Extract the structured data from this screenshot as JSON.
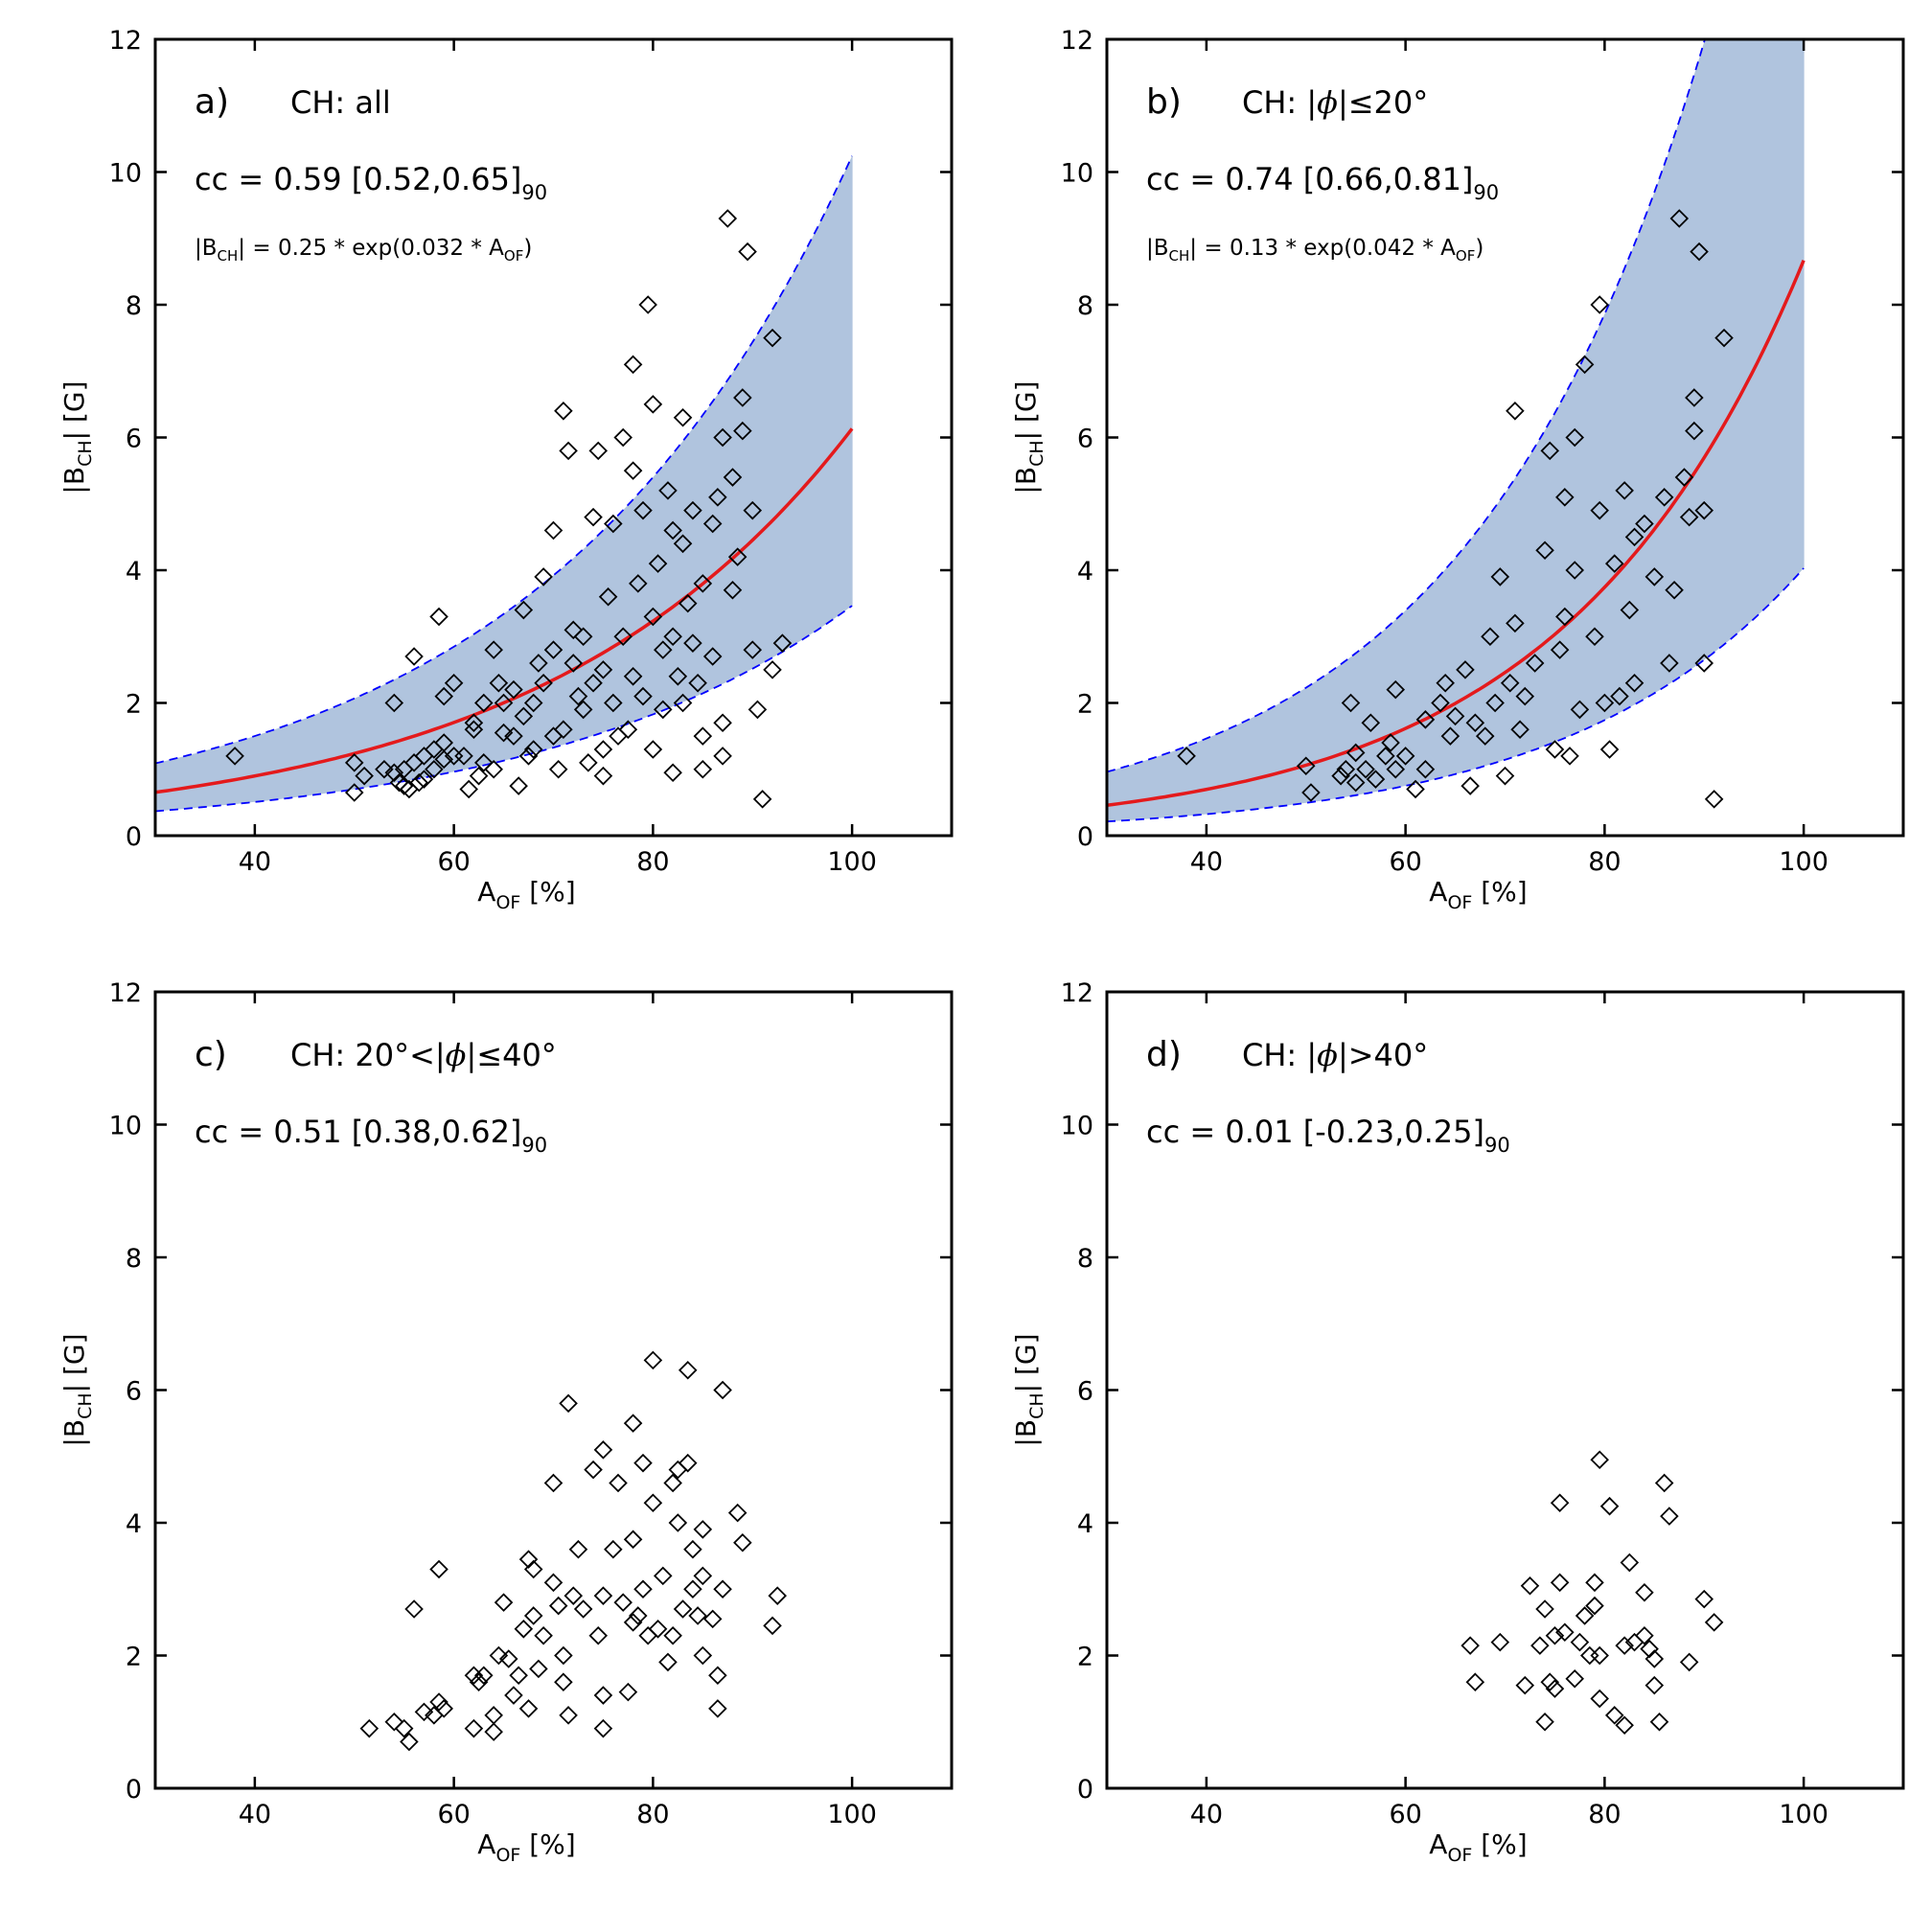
{
  "chart_data": [
    {
      "type": "scatter",
      "panel_label": "a)",
      "title": "CH: all",
      "cc_text": "cc = 0.59 [0.52,0.65]",
      "cc_subscript": "90",
      "fit": {
        "a": 0.25,
        "b": 0.032,
        "x_range": [
          30,
          100
        ],
        "band_lower_factor": 0.565,
        "band_upper_factor": 1.67,
        "eq_prefix": "|B",
        "eq_sub1": "CH",
        "eq_mid": "| = 0.25 * exp(0.032 * A",
        "eq_sub2": "OF",
        "eq_suffix": ")"
      },
      "xlabel": "A",
      "xlabel_sub": "OF",
      "xlabel_suffix": " [%]",
      "ylabel": "|B",
      "ylabel_sub": "CH",
      "ylabel_suffix": "| [G]",
      "xlim": [
        30,
        110
      ],
      "ylim": [
        0,
        12
      ],
      "xticks": [
        40,
        60,
        80,
        100
      ],
      "yticks": [
        0,
        2,
        4,
        6,
        8,
        10,
        12
      ],
      "points": [
        [
          38,
          1.2
        ],
        [
          50,
          1.1
        ],
        [
          50,
          0.65
        ],
        [
          51,
          0.9
        ],
        [
          53,
          1.0
        ],
        [
          54,
          0.95
        ],
        [
          54,
          2.0
        ],
        [
          54.5,
          0.8
        ],
        [
          55,
          1.0
        ],
        [
          55,
          0.75
        ],
        [
          55.5,
          0.7
        ],
        [
          56,
          2.7
        ],
        [
          56,
          1.1
        ],
        [
          56.5,
          0.8
        ],
        [
          57,
          1.2
        ],
        [
          57,
          0.85
        ],
        [
          58,
          1.3
        ],
        [
          58,
          1.0
        ],
        [
          58.5,
          3.3
        ],
        [
          59,
          2.1
        ],
        [
          59,
          1.4
        ],
        [
          59,
          1.15
        ],
        [
          60,
          1.2
        ],
        [
          60,
          2.3
        ],
        [
          61,
          1.2
        ],
        [
          61.5,
          0.7
        ],
        [
          62,
          1.7
        ],
        [
          62,
          1.6
        ],
        [
          62.5,
          0.9
        ],
        [
          63,
          1.1
        ],
        [
          63,
          2.0
        ],
        [
          64,
          1.0
        ],
        [
          64,
          2.8
        ],
        [
          64.5,
          2.3
        ],
        [
          65,
          2.0
        ],
        [
          65,
          1.55
        ],
        [
          66,
          1.5
        ],
        [
          66,
          2.2
        ],
        [
          66.5,
          0.75
        ],
        [
          67,
          1.8
        ],
        [
          67,
          3.4
        ],
        [
          67.5,
          1.2
        ],
        [
          68,
          1.3
        ],
        [
          68,
          2.0
        ],
        [
          68.5,
          2.6
        ],
        [
          69,
          3.9
        ],
        [
          69,
          2.3
        ],
        [
          70,
          4.6
        ],
        [
          70,
          1.5
        ],
        [
          70,
          2.8
        ],
        [
          70.5,
          1.0
        ],
        [
          71,
          6.4
        ],
        [
          71,
          1.6
        ],
        [
          71.5,
          5.8
        ],
        [
          72,
          3.1
        ],
        [
          72,
          2.6
        ],
        [
          72.5,
          2.1
        ],
        [
          73,
          1.9
        ],
        [
          73,
          3.0
        ],
        [
          73.5,
          1.1
        ],
        [
          74,
          4.8
        ],
        [
          74,
          2.3
        ],
        [
          74.5,
          5.8
        ],
        [
          75,
          2.5
        ],
        [
          75,
          1.3
        ],
        [
          75,
          0.9
        ],
        [
          75.5,
          3.6
        ],
        [
          76,
          4.7
        ],
        [
          76,
          2.0
        ],
        [
          76.5,
          1.5
        ],
        [
          77,
          6.0
        ],
        [
          77,
          3.0
        ],
        [
          77.5,
          1.6
        ],
        [
          78,
          7.1
        ],
        [
          78,
          5.5
        ],
        [
          78,
          2.4
        ],
        [
          78.5,
          3.8
        ],
        [
          79,
          4.9
        ],
        [
          79,
          2.1
        ],
        [
          79.5,
          8.0
        ],
        [
          80,
          6.5
        ],
        [
          80,
          1.3
        ],
        [
          80,
          3.3
        ],
        [
          80.5,
          4.1
        ],
        [
          81,
          2.8
        ],
        [
          81,
          1.9
        ],
        [
          81.5,
          5.2
        ],
        [
          82,
          4.6
        ],
        [
          82,
          3.0
        ],
        [
          82,
          0.95
        ],
        [
          82.5,
          2.4
        ],
        [
          83,
          6.3
        ],
        [
          83,
          4.4
        ],
        [
          83,
          2.0
        ],
        [
          83.5,
          3.5
        ],
        [
          84,
          2.9
        ],
        [
          84,
          4.9
        ],
        [
          84.5,
          2.3
        ],
        [
          85,
          1.5
        ],
        [
          85,
          3.8
        ],
        [
          85,
          1.0
        ],
        [
          86,
          4.7
        ],
        [
          86,
          2.7
        ],
        [
          86.5,
          5.1
        ],
        [
          87,
          6.0
        ],
        [
          87,
          1.7
        ],
        [
          87,
          1.2
        ],
        [
          87.5,
          9.3
        ],
        [
          88,
          5.4
        ],
        [
          88,
          3.7
        ],
        [
          88.5,
          4.2
        ],
        [
          89,
          6.6
        ],
        [
          89,
          6.1
        ],
        [
          89.5,
          8.8
        ],
        [
          90,
          4.9
        ],
        [
          90,
          2.8
        ],
        [
          90.5,
          1.9
        ],
        [
          91,
          0.55
        ],
        [
          92,
          7.5
        ],
        [
          92,
          2.5
        ],
        [
          93,
          2.9
        ]
      ]
    },
    {
      "type": "scatter",
      "panel_label": "b)",
      "title": "CH: |",
      "title_phi": "ϕ",
      "title_suffix": "|≤20°",
      "cc_text": "cc = 0.74 [0.66,0.81]",
      "cc_subscript": "90",
      "fit": {
        "a": 0.13,
        "b": 0.042,
        "x_range": [
          30,
          100
        ],
        "band_lower_factor": 0.465,
        "band_upper_factor": 2.1,
        "eq_prefix": "|B",
        "eq_sub1": "CH",
        "eq_mid": "| = 0.13 * exp(0.042 * A",
        "eq_sub2": "OF",
        "eq_suffix": ")"
      },
      "xlabel": "A",
      "xlabel_sub": "OF",
      "xlabel_suffix": " [%]",
      "ylabel": "|B",
      "ylabel_sub": "CH",
      "ylabel_suffix": "| [G]",
      "xlim": [
        30,
        110
      ],
      "ylim": [
        0,
        12
      ],
      "xticks": [
        40,
        60,
        80,
        100
      ],
      "yticks": [
        0,
        2,
        4,
        6,
        8,
        10,
        12
      ],
      "points": [
        [
          38,
          1.2
        ],
        [
          50,
          1.05
        ],
        [
          50.5,
          0.65
        ],
        [
          53.5,
          0.9
        ],
        [
          54,
          1.0
        ],
        [
          54.5,
          2.0
        ],
        [
          55,
          1.25
        ],
        [
          55,
          0.8
        ],
        [
          56,
          1.0
        ],
        [
          56.5,
          1.7
        ],
        [
          57,
          0.85
        ],
        [
          58,
          1.2
        ],
        [
          58.5,
          1.4
        ],
        [
          59,
          2.2
        ],
        [
          59,
          1.0
        ],
        [
          60,
          1.2
        ],
        [
          61,
          0.7
        ],
        [
          62,
          1.75
        ],
        [
          62,
          1.0
        ],
        [
          63.5,
          2.0
        ],
        [
          64,
          2.3
        ],
        [
          64.5,
          1.5
        ],
        [
          65,
          1.8
        ],
        [
          66,
          2.5
        ],
        [
          66.5,
          0.75
        ],
        [
          67,
          1.7
        ],
        [
          68,
          1.5
        ],
        [
          68.5,
          3.0
        ],
        [
          69,
          2.0
        ],
        [
          69.5,
          3.9
        ],
        [
          70,
          0.9
        ],
        [
          70.5,
          2.3
        ],
        [
          71,
          3.2
        ],
        [
          71,
          6.4
        ],
        [
          71.5,
          1.6
        ],
        [
          72,
          2.1
        ],
        [
          73,
          2.6
        ],
        [
          74,
          4.3
        ],
        [
          74.5,
          5.8
        ],
        [
          75,
          1.3
        ],
        [
          75.5,
          2.8
        ],
        [
          76,
          5.1
        ],
        [
          76,
          3.3
        ],
        [
          76.5,
          1.2
        ],
        [
          77,
          6.0
        ],
        [
          77,
          4.0
        ],
        [
          77.5,
          1.9
        ],
        [
          78,
          7.1
        ],
        [
          79,
          3.0
        ],
        [
          79.5,
          8.0
        ],
        [
          79.5,
          4.9
        ],
        [
          80,
          2.0
        ],
        [
          80.5,
          1.3
        ],
        [
          81,
          4.1
        ],
        [
          81.5,
          2.1
        ],
        [
          82,
          5.2
        ],
        [
          82.5,
          3.4
        ],
        [
          83,
          4.5
        ],
        [
          83,
          2.3
        ],
        [
          84,
          4.7
        ],
        [
          85,
          3.9
        ],
        [
          86,
          5.1
        ],
        [
          86.5,
          2.6
        ],
        [
          87,
          3.7
        ],
        [
          87.5,
          9.3
        ],
        [
          88,
          5.4
        ],
        [
          88.5,
          4.8
        ],
        [
          89,
          6.6
        ],
        [
          89,
          6.1
        ],
        [
          89.5,
          8.8
        ],
        [
          90,
          4.9
        ],
        [
          90,
          2.6
        ],
        [
          91,
          0.55
        ],
        [
          92,
          7.5
        ]
      ]
    },
    {
      "type": "scatter",
      "panel_label": "c)",
      "title": "CH: 20°<|",
      "title_phi": "ϕ",
      "title_suffix": "|≤40°",
      "cc_text": "cc = 0.51 [0.38,0.62]",
      "cc_subscript": "90",
      "xlabel": "A",
      "xlabel_sub": "OF",
      "xlabel_suffix": " [%]",
      "ylabel": "|B",
      "ylabel_sub": "CH",
      "ylabel_suffix": "| [G]",
      "xlim": [
        30,
        110
      ],
      "ylim": [
        0,
        12
      ],
      "xticks": [
        40,
        60,
        80,
        100
      ],
      "yticks": [
        0,
        2,
        4,
        6,
        8,
        10,
        12
      ],
      "points": [
        [
          51.5,
          0.9
        ],
        [
          54,
          1.0
        ],
        [
          55,
          0.9
        ],
        [
          55.5,
          0.7
        ],
        [
          56,
          2.7
        ],
        [
          57,
          1.15
        ],
        [
          58,
          1.1
        ],
        [
          58.5,
          3.3
        ],
        [
          58.5,
          1.3
        ],
        [
          59,
          1.2
        ],
        [
          62,
          1.7
        ],
        [
          62,
          0.9
        ],
        [
          62.5,
          1.6
        ],
        [
          63,
          1.7
        ],
        [
          64,
          1.1
        ],
        [
          64,
          0.85
        ],
        [
          64.5,
          2.0
        ],
        [
          65,
          2.8
        ],
        [
          65.5,
          1.95
        ],
        [
          66,
          1.4
        ],
        [
          66.5,
          1.7
        ],
        [
          67,
          2.4
        ],
        [
          67.5,
          3.45
        ],
        [
          67.5,
          1.2
        ],
        [
          68,
          3.3
        ],
        [
          68,
          2.6
        ],
        [
          68.5,
          1.8
        ],
        [
          69,
          2.3
        ],
        [
          70,
          4.6
        ],
        [
          70,
          3.1
        ],
        [
          70.5,
          2.75
        ],
        [
          71,
          2.0
        ],
        [
          71,
          1.6
        ],
        [
          71.5,
          5.8
        ],
        [
          71.5,
          1.1
        ],
        [
          72,
          2.9
        ],
        [
          72.5,
          3.6
        ],
        [
          73,
          2.7
        ],
        [
          74,
          4.8
        ],
        [
          74.5,
          2.3
        ],
        [
          75,
          5.1
        ],
        [
          75,
          2.9
        ],
        [
          75,
          1.4
        ],
        [
          75,
          0.9
        ],
        [
          76,
          3.6
        ],
        [
          76.5,
          4.6
        ],
        [
          77,
          2.8
        ],
        [
          77.5,
          1.45
        ],
        [
          78,
          5.5
        ],
        [
          78,
          3.75
        ],
        [
          78,
          2.5
        ],
        [
          78.5,
          2.6
        ],
        [
          79,
          4.9
        ],
        [
          79,
          3.0
        ],
        [
          79.5,
          2.3
        ],
        [
          80,
          6.45
        ],
        [
          80,
          4.3
        ],
        [
          80.5,
          2.4
        ],
        [
          81,
          3.2
        ],
        [
          81.5,
          1.9
        ],
        [
          82,
          4.6
        ],
        [
          82,
          2.3
        ],
        [
          82.5,
          4.0
        ],
        [
          82.5,
          4.8
        ],
        [
          83,
          2.7
        ],
        [
          83.5,
          6.3
        ],
        [
          83.5,
          4.9
        ],
        [
          84,
          3.6
        ],
        [
          84,
          3.0
        ],
        [
          84.5,
          2.6
        ],
        [
          85,
          3.9
        ],
        [
          85,
          3.2
        ],
        [
          85,
          2.0
        ],
        [
          86,
          2.55
        ],
        [
          86.5,
          1.7
        ],
        [
          86.5,
          1.2
        ],
        [
          87,
          6.0
        ],
        [
          87,
          3.0
        ],
        [
          88.5,
          4.15
        ],
        [
          89,
          3.7
        ],
        [
          92,
          2.45
        ],
        [
          92.5,
          2.9
        ]
      ]
    },
    {
      "type": "scatter",
      "panel_label": "d)",
      "title": "CH: |",
      "title_phi": "ϕ",
      "title_suffix": "|>40°",
      "cc_text": "cc = 0.01 [-0.23,0.25]",
      "cc_subscript": "90",
      "xlabel": "A",
      "xlabel_sub": "OF",
      "xlabel_suffix": " [%]",
      "ylabel": "|B",
      "ylabel_sub": "CH",
      "ylabel_suffix": "| [G]",
      "xlim": [
        30,
        110
      ],
      "ylim": [
        0,
        12
      ],
      "xticks": [
        40,
        60,
        80,
        100
      ],
      "yticks": [
        0,
        2,
        4,
        6,
        8,
        10,
        12
      ],
      "points": [
        [
          66.5,
          2.15
        ],
        [
          67,
          1.6
        ],
        [
          69.5,
          2.2
        ],
        [
          72,
          1.55
        ],
        [
          72.5,
          3.05
        ],
        [
          73.5,
          2.15
        ],
        [
          74,
          2.7
        ],
        [
          74,
          1.0
        ],
        [
          74.5,
          1.6
        ],
        [
          75,
          1.5
        ],
        [
          75,
          2.3
        ],
        [
          75.5,
          3.1
        ],
        [
          75.5,
          4.3
        ],
        [
          76,
          2.35
        ],
        [
          77,
          1.65
        ],
        [
          77.5,
          2.2
        ],
        [
          78,
          2.6
        ],
        [
          78.5,
          2.0
        ],
        [
          79,
          2.75
        ],
        [
          79,
          3.1
        ],
        [
          79.5,
          2.0
        ],
        [
          79.5,
          1.35
        ],
        [
          79.5,
          4.95
        ],
        [
          80.5,
          4.25
        ],
        [
          81,
          1.1
        ],
        [
          82,
          2.15
        ],
        [
          82,
          0.95
        ],
        [
          82.5,
          3.4
        ],
        [
          83,
          2.2
        ],
        [
          84,
          2.3
        ],
        [
          84,
          2.95
        ],
        [
          84.5,
          2.1
        ],
        [
          85,
          1.95
        ],
        [
          85,
          1.55
        ],
        [
          85.5,
          1.0
        ],
        [
          86,
          4.6
        ],
        [
          86.5,
          4.1
        ],
        [
          88.5,
          1.9
        ],
        [
          90,
          2.85
        ],
        [
          91,
          2.5
        ]
      ]
    }
  ]
}
